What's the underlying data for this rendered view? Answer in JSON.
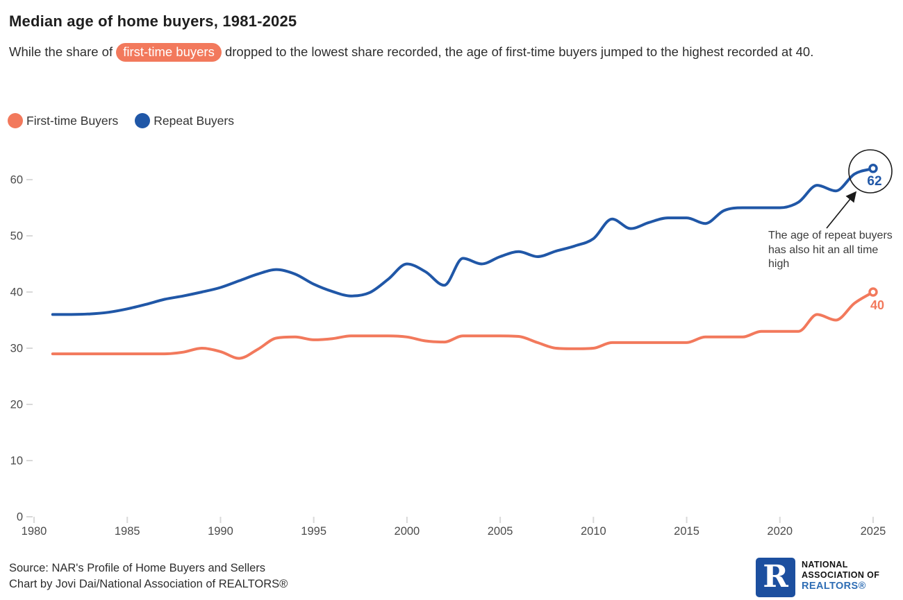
{
  "header": {
    "title": "Median age of home buyers, 1981-2025",
    "subtitle_pre": "While the share of ",
    "subtitle_highlight": "first-time buyers",
    "subtitle_post": " dropped to the lowest share recorded, the age of first-time buyers jumped to the highest recorded at 40."
  },
  "legend": {
    "items": [
      {
        "label": "First-time Buyers",
        "color": "#F2795C"
      },
      {
        "label": "Repeat Buyers",
        "color": "#2057A7"
      }
    ]
  },
  "annotation": {
    "text": "The age of repeat buyers has also hit an all time high"
  },
  "footer": {
    "source_line": "Source: NAR's Profile of Home Buyers and Sellers",
    "credit_line": "Chart by Jovi Dai/National Association of REALTORS®",
    "logo": {
      "r_letter": "R",
      "line1": "NATIONAL",
      "line2": "ASSOCIATION OF",
      "line3": "REALTORS®",
      "square_blue": "#1C4F9F",
      "text_blue": "#2E6DB4"
    }
  },
  "chart_data": {
    "type": "line",
    "title": "Median age of home buyers, 1981-2025",
    "x_domain": [
      1980,
      2025
    ],
    "y_domain": [
      0,
      60
    ],
    "grid": "ticks-only",
    "legend_position": "top-left",
    "x_ticks": [
      "1980",
      "1985",
      "1990",
      "1995",
      "2000",
      "2005",
      "2010",
      "2015",
      "2020",
      "2025"
    ],
    "y_ticks": [
      "0",
      "10",
      "20",
      "30",
      "40",
      "50",
      "60"
    ],
    "years": [
      1981,
      1982,
      1983,
      1984,
      1985,
      1986,
      1987,
      1988,
      1989,
      1990,
      1991,
      1992,
      1993,
      1994,
      1995,
      1996,
      1997,
      1998,
      1999,
      2000,
      2001,
      2002,
      2003,
      2004,
      2005,
      2006,
      2007,
      2008,
      2009,
      2010,
      2011,
      2012,
      2013,
      2014,
      2015,
      2016,
      2017,
      2018,
      2019,
      2020,
      2021,
      2022,
      2023,
      2024,
      2025
    ],
    "series": [
      {
        "name": "First-time Buyers",
        "color": "#F2795C",
        "end_label": "40",
        "values": [
          29,
          29,
          29,
          29,
          29,
          29,
          29,
          29.3,
          30,
          29.4,
          28.2,
          29.8,
          31.8,
          32,
          31.5,
          31.7,
          32.2,
          32.2,
          32.2,
          32,
          31.3,
          31.1,
          32.2,
          32.2,
          32.2,
          32.1,
          31,
          30,
          29.9,
          30,
          31,
          31,
          31,
          31,
          31,
          32,
          32,
          32,
          33,
          33,
          33,
          36,
          35,
          38,
          40
        ]
      },
      {
        "name": "Repeat Buyers",
        "color": "#2057A7",
        "end_label": "62",
        "values": [
          36,
          36,
          36.1,
          36.4,
          37,
          37.8,
          38.7,
          39.3,
          40,
          40.8,
          42,
          43.2,
          44,
          43.2,
          41.4,
          40.1,
          39.3,
          39.9,
          42.3,
          45,
          43.6,
          41.2,
          46,
          45,
          46.3,
          47.2,
          46.3,
          47.3,
          48.2,
          49.5,
          53,
          51.3,
          52.4,
          53.2,
          53.2,
          52.2,
          54.5,
          55,
          55,
          55,
          56,
          59,
          58,
          61,
          62
        ]
      }
    ]
  }
}
